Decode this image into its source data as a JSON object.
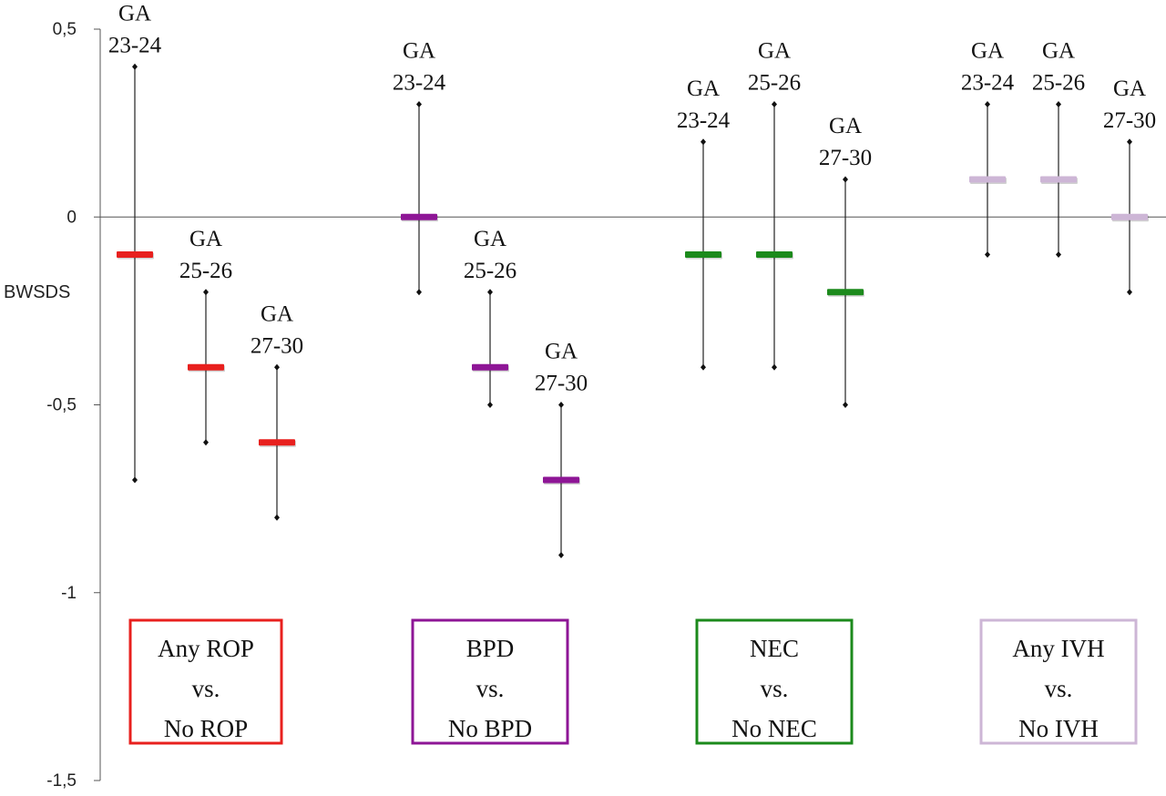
{
  "chart_data": {
    "type": "error-bar",
    "title": "",
    "xlabel": "",
    "ylabel": "BWSDS",
    "ylim": [
      -1.5,
      0.5
    ],
    "yticks": [
      {
        "value": 0.5,
        "label": "0,5"
      },
      {
        "value": 0,
        "label": "0"
      },
      {
        "value": -0.5,
        "label": "-0,5"
      },
      {
        "value": -1,
        "label": "-1"
      },
      {
        "value": -1.5,
        "label": "-1,5"
      }
    ],
    "groups": [
      {
        "label_lines": [
          "Any ROP",
          "vs.",
          "No ROP"
        ],
        "color": "#e8201e",
        "points": [
          {
            "label_lines": [
              "GA",
              "23-24"
            ],
            "mean": -0.1,
            "upper": 0.4,
            "lower": -0.7
          },
          {
            "label_lines": [
              "GA",
              "25-26"
            ],
            "mean": -0.4,
            "upper": -0.2,
            "lower": -0.6
          },
          {
            "label_lines": [
              "GA",
              "27-30"
            ],
            "mean": -0.6,
            "upper": -0.4,
            "lower": -0.8
          }
        ]
      },
      {
        "label_lines": [
          "BPD",
          "vs.",
          "No BPD"
        ],
        "color": "#8e1696",
        "points": [
          {
            "label_lines": [
              "GA",
              "23-24"
            ],
            "mean": 0.0,
            "upper": 0.3,
            "lower": -0.2
          },
          {
            "label_lines": [
              "GA",
              "25-26"
            ],
            "mean": -0.4,
            "upper": -0.2,
            "lower": -0.5
          },
          {
            "label_lines": [
              "GA",
              "27-30"
            ],
            "mean": -0.7,
            "upper": -0.5,
            "lower": -0.9
          }
        ]
      },
      {
        "label_lines": [
          "NEC",
          "vs.",
          "No NEC"
        ],
        "color": "#1c8a1c",
        "points": [
          {
            "label_lines": [
              "GA",
              "23-24"
            ],
            "mean": -0.1,
            "upper": 0.2,
            "lower": -0.4
          },
          {
            "label_lines": [
              "GA",
              "25-26"
            ],
            "mean": -0.1,
            "upper": 0.3,
            "lower": -0.4
          },
          {
            "label_lines": [
              "GA",
              "27-30"
            ],
            "mean": -0.2,
            "upper": 0.1,
            "lower": -0.5
          }
        ]
      },
      {
        "label_lines": [
          "Any IVH",
          "vs.",
          "No IVH"
        ],
        "color": "#cdb6d6",
        "points": [
          {
            "label_lines": [
              "GA",
              "23-24"
            ],
            "mean": 0.1,
            "upper": 0.3,
            "lower": -0.1
          },
          {
            "label_lines": [
              "GA",
              "25-26"
            ],
            "mean": 0.1,
            "upper": 0.3,
            "lower": -0.1
          },
          {
            "label_lines": [
              "GA",
              "27-30"
            ],
            "mean": 0.0,
            "upper": 0.2,
            "lower": -0.2
          }
        ]
      }
    ]
  }
}
